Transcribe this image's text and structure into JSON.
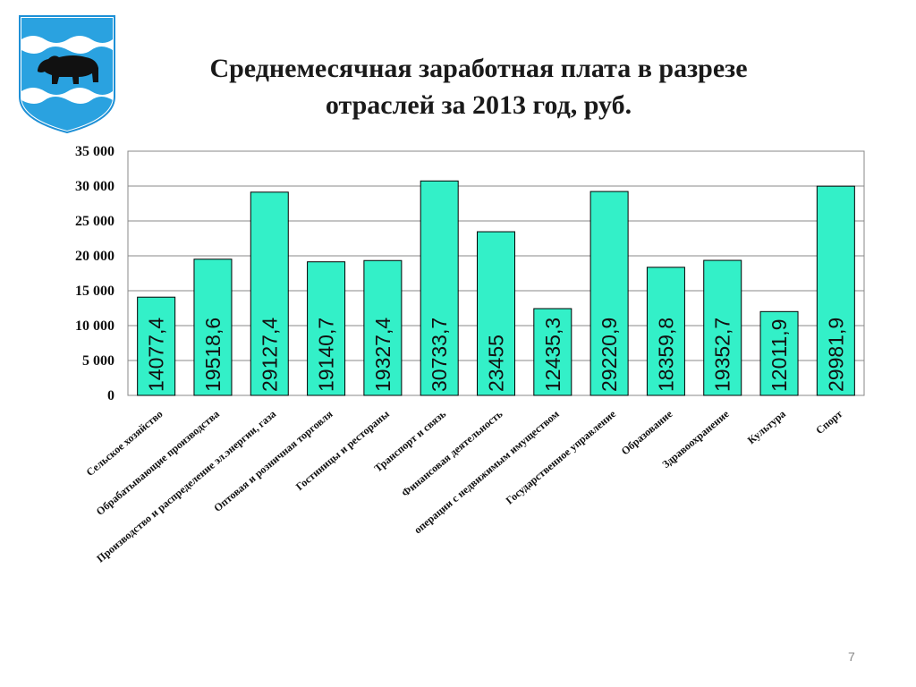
{
  "page_number": "7",
  "colors": {
    "bar_fill": "#33f0c8",
    "bar_stroke": "#000000",
    "grid": "#888888"
  },
  "icons": {
    "emblem": "coat-of-arms-bear-waves-icon"
  },
  "chart_data": {
    "type": "bar",
    "title_lines": [
      "Среднемесячная заработная плата в разрезе",
      "отраслей за 2013 год, руб."
    ],
    "title": "Среднемесячная заработная плата в разрезе отраслей за 2013 год, руб.",
    "xlabel": "",
    "ylabel": "",
    "ylim": [
      0,
      35000
    ],
    "ytick_values": [
      0,
      5000,
      10000,
      15000,
      20000,
      25000,
      30000,
      35000
    ],
    "ytick_labels": [
      "0",
      "5 000",
      "10 000",
      "15 000",
      "20 000",
      "25 000",
      "30 000",
      "35 000"
    ],
    "grid": true,
    "legend": "none",
    "categories": [
      "Сельское хозяйство",
      "Обрабатывающие производства",
      "Производство и распределение эл.энергии, газа",
      "Оптовая и розничная торговля",
      "Гостиницы и рестораны",
      "Транспорт и связь",
      "Финансовая деятельность",
      "операции с недвижимым имуществом",
      "Государственное управление",
      "Образование",
      "Здравоохранение",
      "Культура",
      "Спорт"
    ],
    "values": [
      14077.4,
      19518.6,
      29127.4,
      19140.7,
      19327.4,
      30733.7,
      23455,
      12435.3,
      29220.9,
      18359.8,
      19352.7,
      12011.9,
      29981.9
    ],
    "data_labels": [
      "14077,4",
      "19518,6",
      "29127,4",
      "19140,7",
      "19327,4",
      "30733,7",
      "23455",
      "12435,3",
      "29220,9",
      "18359,8",
      "19352,7",
      "12011,9",
      "29981,9"
    ]
  }
}
